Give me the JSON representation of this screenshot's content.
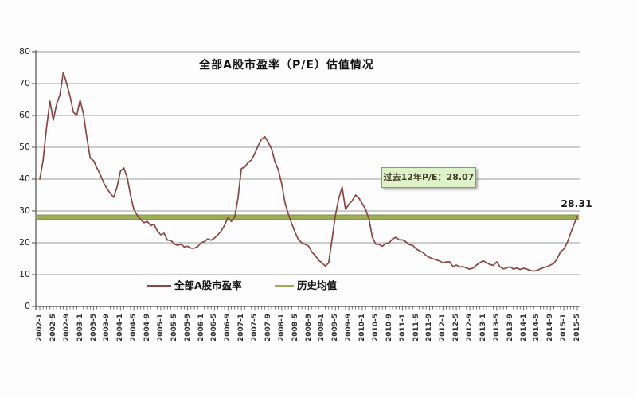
{
  "figure_title": "全部A股市盈率（P/E）估值情况",
  "annotation_box_text": "过去12年P/E：28.07",
  "series_end_label": "28.31",
  "legend": {
    "items": [
      {
        "label": "全部A股市盈率",
        "color": "#8a4642"
      },
      {
        "label": "历史均值",
        "color": "#9fae55"
      }
    ]
  },
  "y_axis": {
    "ticks": [
      0,
      10,
      20,
      30,
      40,
      50,
      60,
      70,
      80
    ]
  },
  "chart_data": {
    "type": "line",
    "title": "全部A股市盈率（P/E）估值情况",
    "x_start": "2002-1",
    "x_end": "2015-5",
    "x_frequency": "monthly",
    "x_tick_labels": [
      "2002-1",
      "2002-5",
      "2002-9",
      "2003-1",
      "2003-5",
      "2003-9",
      "2004-1",
      "2004-5",
      "2004-9",
      "2005-1",
      "2005-5",
      "2005-9",
      "2006-1",
      "2006-5",
      "2006-9",
      "2007-1",
      "2007-5",
      "2007-9",
      "2008-1",
      "2008-5",
      "2008-9",
      "2009-1",
      "2009-5",
      "2009-9",
      "2010-1",
      "2010-5",
      "2010-9",
      "2011-1",
      "2011-5",
      "2011-9",
      "2012-1",
      "2012-5",
      "2012-9",
      "2013-1",
      "2013-5",
      "2013-9",
      "2014-1",
      "2014-5",
      "2014-9",
      "2015-1",
      "2015-5"
    ],
    "ylim": [
      0,
      80
    ],
    "yticks": [
      0,
      10,
      20,
      30,
      40,
      50,
      60,
      70,
      80
    ],
    "grid": true,
    "legend_position": "bottom-inside",
    "series": [
      {
        "name": "全部A股市盈率",
        "color": "#8a4642",
        "values": [
          40,
          46,
          56,
          64.5,
          58.5,
          63.5,
          66.5,
          73.5,
          70,
          66,
          61,
          60,
          64.8,
          60.5,
          53,
          46.6,
          45.8,
          43.5,
          41.5,
          38.8,
          37,
          35.5,
          34.3,
          37.5,
          42.5,
          43.5,
          40.5,
          35,
          30.5,
          28.7,
          27.3,
          26.3,
          26.7,
          25.4,
          25.8,
          23.7,
          22.5,
          23,
          20.8,
          20.8,
          19.6,
          19.2,
          19.6,
          18.7,
          18.9,
          18.3,
          18.3,
          18.8,
          20,
          20.4,
          21.2,
          20.8,
          21.5,
          22.5,
          23.7,
          25.5,
          27.9,
          26.7,
          28,
          34,
          43.3,
          43.8,
          45.2,
          46,
          48,
          50.5,
          52.5,
          53.3,
          51.5,
          49.5,
          45.4,
          43,
          38.5,
          32.5,
          29,
          26,
          23.3,
          21,
          20,
          19.5,
          19,
          17.1,
          16,
          14.5,
          13.7,
          12.7,
          13.7,
          21,
          28.7,
          34,
          37.5,
          30.5,
          32.1,
          33.2,
          35,
          34,
          32.3,
          30.5,
          27.5,
          21.7,
          19.6,
          19.5,
          18.9,
          19.8,
          20,
          21.2,
          21.7,
          20.9,
          20.9,
          20.3,
          19.4,
          19.2,
          18.1,
          17.5,
          17,
          16,
          15.4,
          15,
          14.6,
          14.3,
          13.7,
          14,
          14,
          12.5,
          13,
          12.4,
          12.5,
          12.1,
          11.7,
          12.1,
          13,
          13.7,
          14.4,
          13.7,
          13.2,
          12.9,
          14,
          12.4,
          11.8,
          12.1,
          12.5,
          11.7,
          12.1,
          11.6,
          12,
          11.7,
          11.3,
          11.1,
          11.3,
          11.8,
          12.2,
          12.5,
          13,
          13.5,
          15,
          17.2,
          18,
          20,
          23,
          25.8,
          28.31
        ]
      },
      {
        "name": "历史均值",
        "color": "#9fae55",
        "style": "horizontal-line",
        "value": 28.07
      }
    ],
    "annotations": [
      {
        "text": "过去12年P/E：28.07",
        "type": "callout-box"
      },
      {
        "text": "28.31",
        "type": "end-value-label"
      }
    ]
  }
}
